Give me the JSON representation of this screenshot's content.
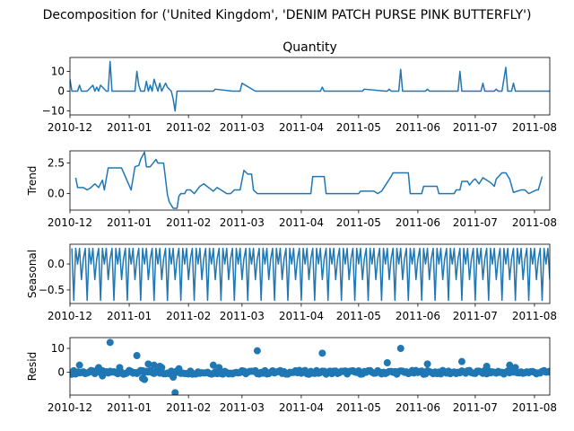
{
  "figure_title": "Decomposition for ('United Kingdom', 'DENIM PATCH PURSE PINK BUTTERFLY')",
  "line_color": "#1f77b4",
  "chart_data": [
    {
      "type": "line",
      "title": "Quantity",
      "ylabel": "",
      "x_ticks": [
        "2010-12",
        "2011-01",
        "2011-02",
        "2011-03",
        "2011-04",
        "2011-05",
        "2011-06",
        "2011-07",
        "2011-08"
      ],
      "xlim": [
        "2010-12-01",
        "2011-08-09"
      ],
      "ylim": [
        -12,
        17
      ],
      "y_ticks": [
        -10,
        0,
        10
      ],
      "y_tick_labels": [
        "−10",
        "0",
        "10"
      ],
      "series": [
        {
          "x": [
            "2010-12-01",
            "2010-12-02",
            "2010-12-05",
            "2010-12-06",
            "2010-12-07",
            "2010-12-08",
            "2010-12-09",
            "2010-12-10",
            "2010-12-13",
            "2010-12-14",
            "2010-12-15",
            "2010-12-16",
            "2010-12-17",
            "2010-12-20",
            "2010-12-21",
            "2010-12-22",
            "2010-12-23",
            "2011-01-04",
            "2011-01-05",
            "2011-01-06",
            "2011-01-07",
            "2011-01-09",
            "2011-01-10",
            "2011-01-11",
            "2011-01-12",
            "2011-01-13",
            "2011-01-14",
            "2011-01-16",
            "2011-01-17",
            "2011-01-18",
            "2011-01-19",
            "2011-01-20",
            "2011-01-21",
            "2011-01-23",
            "2011-01-24",
            "2011-01-25",
            "2011-01-26",
            "2011-01-27",
            "2011-01-28",
            "2011-01-30",
            "2011-02-14",
            "2011-02-15",
            "2011-02-24",
            "2011-02-25",
            "2011-02-28",
            "2011-03-01",
            "2011-03-08",
            "2011-03-09",
            "2011-03-10",
            "2011-04-11",
            "2011-04-12",
            "2011-04-13",
            "2011-05-03",
            "2011-05-04",
            "2011-05-15",
            "2011-05-16",
            "2011-05-17",
            "2011-05-18",
            "2011-05-22",
            "2011-05-23",
            "2011-05-24",
            "2011-06-05",
            "2011-06-06",
            "2011-06-07",
            "2011-06-19",
            "2011-06-20",
            "2011-06-22",
            "2011-06-23",
            "2011-06-24",
            "2011-07-01",
            "2011-07-03",
            "2011-07-04",
            "2011-07-05",
            "2011-07-06",
            "2011-07-07",
            "2011-07-10",
            "2011-07-11",
            "2011-07-12",
            "2011-07-13",
            "2011-07-14",
            "2011-07-15",
            "2011-07-17",
            "2011-07-18",
            "2011-07-19",
            "2011-07-20",
            "2011-07-21",
            "2011-07-22",
            "2011-07-31",
            "2011-08-01",
            "2011-08-07",
            "2011-08-09"
          ],
          "y": [
            6,
            0,
            0,
            3,
            0,
            0,
            0,
            0,
            3,
            0,
            2,
            0,
            3,
            0,
            0,
            15,
            0,
            0,
            10,
            3,
            0,
            0,
            5,
            0,
            3,
            0,
            6,
            0,
            4,
            0,
            2,
            4,
            2,
            0,
            -4,
            -10,
            0,
            0,
            0,
            0,
            0,
            1,
            0,
            0,
            0,
            4,
            0,
            0,
            0,
            0,
            2,
            0,
            0,
            1,
            0,
            0,
            1,
            0,
            0,
            11,
            0,
            0,
            1,
            0,
            0,
            0,
            0,
            10,
            0,
            0,
            0,
            0,
            4,
            0,
            0,
            0,
            0,
            1,
            0,
            0,
            0,
            12,
            0,
            0,
            0,
            4,
            0,
            0,
            0,
            0,
            0
          ]
        }
      ]
    },
    {
      "type": "line",
      "title": "",
      "ylabel": "Trend",
      "x_ticks": [
        "2010-12",
        "2011-01",
        "2011-02",
        "2011-03",
        "2011-04",
        "2011-05",
        "2011-06",
        "2011-07",
        "2011-08"
      ],
      "xlim": [
        "2010-12-01",
        "2011-08-09"
      ],
      "ylim": [
        -1.35,
        3.5
      ],
      "y_ticks": [
        0.0,
        2.5
      ],
      "y_tick_labels": [
        "0.0",
        "2.5"
      ],
      "series": [
        {
          "x": [
            "2010-12-04",
            "2010-12-05",
            "2010-12-08",
            "2010-12-10",
            "2010-12-12",
            "2010-12-14",
            "2010-12-16",
            "2010-12-18",
            "2010-12-19",
            "2010-12-21",
            "2010-12-22",
            "2010-12-28",
            "2011-01-02",
            "2011-01-04",
            "2011-01-06",
            "2011-01-07",
            "2011-01-09",
            "2011-01-10",
            "2011-01-12",
            "2011-01-15",
            "2011-01-16",
            "2011-01-19",
            "2011-01-21",
            "2011-01-22",
            "2011-01-24",
            "2011-01-25",
            "2011-01-26",
            "2011-01-27",
            "2011-01-28",
            "2011-01-30",
            "2011-01-31",
            "2011-02-02",
            "2011-02-04",
            "2011-02-07",
            "2011-02-09",
            "2011-02-14",
            "2011-02-16",
            "2011-02-19",
            "2011-02-21",
            "2011-02-23",
            "2011-02-25",
            "2011-02-28",
            "2011-03-02",
            "2011-03-04",
            "2011-03-06",
            "2011-03-07",
            "2011-03-09",
            "2011-03-13",
            "2011-03-14",
            "2011-03-15",
            "2011-04-06",
            "2011-04-07",
            "2011-04-13",
            "2011-04-14",
            "2011-05-01",
            "2011-05-02",
            "2011-05-09",
            "2011-05-11",
            "2011-05-13",
            "2011-05-18",
            "2011-05-19",
            "2011-05-27",
            "2011-05-28",
            "2011-06-03",
            "2011-06-04",
            "2011-06-11",
            "2011-06-12",
            "2011-06-20",
            "2011-06-21",
            "2011-06-23",
            "2011-06-24",
            "2011-06-27",
            "2011-06-28",
            "2011-06-30",
            "2011-07-01",
            "2011-07-03",
            "2011-07-05",
            "2011-07-07",
            "2011-07-09",
            "2011-07-11",
            "2011-07-12",
            "2011-07-15",
            "2011-07-17",
            "2011-07-19",
            "2011-07-21",
            "2011-07-25",
            "2011-07-27",
            "2011-07-29",
            "2011-08-02",
            "2011-08-03",
            "2011-08-05"
          ],
          "y": [
            1.3,
            0.5,
            0.5,
            0.3,
            0.5,
            0.8,
            0.5,
            1.1,
            0.3,
            2.1,
            2.1,
            2.1,
            0.3,
            2.2,
            2.3,
            2.8,
            3.4,
            2.2,
            2.2,
            2.8,
            2.5,
            2.5,
            -0.1,
            -0.7,
            -1.2,
            -1.2,
            -1.2,
            -0.2,
            0.0,
            0.0,
            0.3,
            0.3,
            0.0,
            0.6,
            0.8,
            0.2,
            0.5,
            0.2,
            0.0,
            0.0,
            0.3,
            0.3,
            1.9,
            1.6,
            1.6,
            0.3,
            0.0,
            0.0,
            0.0,
            0.0,
            0.0,
            1.4,
            1.4,
            0.0,
            0.0,
            0.2,
            0.2,
            0.0,
            0.2,
            1.4,
            1.7,
            1.7,
            0.0,
            0.0,
            0.6,
            0.6,
            0.0,
            0.0,
            0.3,
            0.3,
            1.0,
            1.0,
            0.7,
            1.1,
            1.2,
            0.8,
            1.3,
            1.1,
            0.9,
            0.6,
            1.2,
            1.7,
            1.7,
            1.2,
            0.1,
            0.3,
            0.3,
            0.0,
            0.3,
            0.3,
            1.4
          ]
        }
      ]
    },
    {
      "type": "line",
      "title": "",
      "ylabel": "Seasonal",
      "x_ticks": [
        "2010-12",
        "2011-01",
        "2011-02",
        "2011-03",
        "2011-04",
        "2011-05",
        "2011-06",
        "2011-07",
        "2011-08"
      ],
      "xlim": [
        "2010-12-01",
        "2011-08-09"
      ],
      "ylim": [
        -0.76,
        0.38
      ],
      "y_ticks": [
        -0.5,
        0.0
      ],
      "y_tick_labels": [
        "−0.5",
        "0.0"
      ],
      "pattern_start": "2010-12-02",
      "pattern_end": "2011-08-09",
      "pattern_step_days": 1,
      "pattern": [
        0.3,
        -0.7,
        0.3,
        0.0,
        0.3,
        -0.3,
        0.1
      ]
    },
    {
      "type": "scatter",
      "title": "",
      "ylabel": "Resid",
      "x_ticks": [
        "2010-12",
        "2011-01",
        "2011-02",
        "2011-03",
        "2011-04",
        "2011-05",
        "2011-06",
        "2011-07",
        "2011-08"
      ],
      "xlim": [
        "2010-12-01",
        "2011-08-09"
      ],
      "ylim": [
        -9.5,
        14.5
      ],
      "y_ticks": [
        0,
        10
      ],
      "y_tick_labels": [
        "0",
        "10"
      ],
      "baseline": 0,
      "outliers": [
        {
          "x": "2010-12-06",
          "y": 3.0
        },
        {
          "x": "2010-12-16",
          "y": 2.0
        },
        {
          "x": "2010-12-18",
          "y": -1.5
        },
        {
          "x": "2010-12-22",
          "y": 12.5
        },
        {
          "x": "2010-12-27",
          "y": 2.0
        },
        {
          "x": "2011-01-05",
          "y": 7.0
        },
        {
          "x": "2011-01-08",
          "y": -2.5
        },
        {
          "x": "2011-01-09",
          "y": -3.0
        },
        {
          "x": "2011-01-11",
          "y": 3.5
        },
        {
          "x": "2011-01-14",
          "y": 3.0
        },
        {
          "x": "2011-01-17",
          "y": 2.5
        },
        {
          "x": "2011-01-18",
          "y": 2.0
        },
        {
          "x": "2011-01-24",
          "y": -2.0
        },
        {
          "x": "2011-01-25",
          "y": -8.5
        },
        {
          "x": "2011-01-27",
          "y": 1.5
        },
        {
          "x": "2011-02-14",
          "y": 3.0
        },
        {
          "x": "2011-02-17",
          "y": 2.0
        },
        {
          "x": "2011-03-09",
          "y": 9.0
        },
        {
          "x": "2011-04-12",
          "y": 8.0
        },
        {
          "x": "2011-05-16",
          "y": 4.0
        },
        {
          "x": "2011-05-23",
          "y": 10.0
        },
        {
          "x": "2011-06-06",
          "y": 3.5
        },
        {
          "x": "2011-06-24",
          "y": 4.5
        },
        {
          "x": "2011-07-07",
          "y": 2.5
        },
        {
          "x": "2011-07-19",
          "y": 3.0
        },
        {
          "x": "2011-07-22",
          "y": 2.0
        }
      ]
    }
  ]
}
